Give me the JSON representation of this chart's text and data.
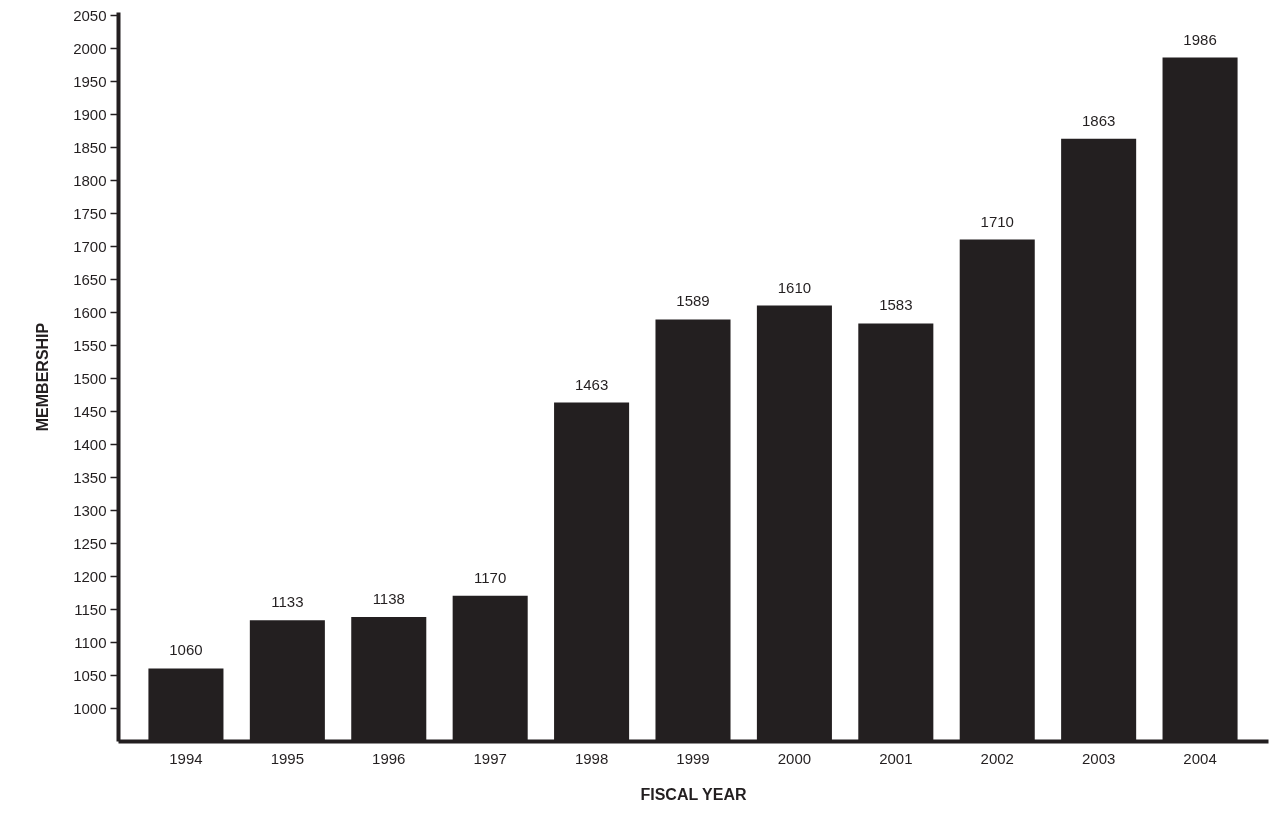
{
  "chart_data": {
    "type": "bar",
    "xlabel": "FISCAL YEAR",
    "ylabel": "MEMBERSHIP",
    "categories": [
      "1994",
      "1995",
      "1996",
      "1997",
      "1998",
      "1999",
      "2000",
      "2001",
      "2002",
      "2003",
      "2004"
    ],
    "values": [
      1060,
      1133,
      1138,
      1170,
      1463,
      1589,
      1610,
      1583,
      1710,
      1863,
      1986
    ],
    "color": "#231f20",
    "data_labels": true,
    "grid": false,
    "ylim": [
      950,
      2055
    ],
    "yticks": [
      1000,
      1050,
      1100,
      1150,
      1200,
      1250,
      1300,
      1350,
      1400,
      1450,
      1500,
      1550,
      1600,
      1650,
      1700,
      1750,
      1800,
      1850,
      1900,
      1950,
      2000,
      2050
    ]
  }
}
